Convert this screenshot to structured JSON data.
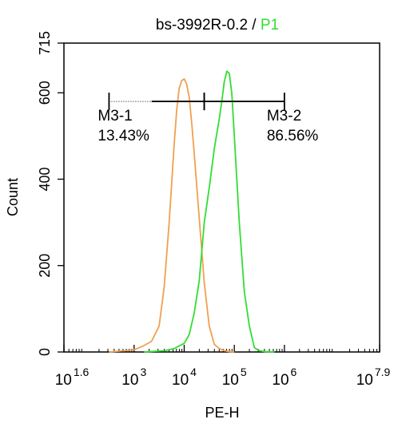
{
  "chart_data": {
    "type": "line",
    "title": {
      "prefix": "bs-3992R-0.2",
      "separator": " / ",
      "highlight": "P1",
      "highlight_color": "#33dd33"
    },
    "xlabel": "PE-H",
    "ylabel": "Count",
    "x_scale": "log10",
    "xlim_exponent": [
      1.6,
      7.9
    ],
    "ylim": [
      0,
      715
    ],
    "x_ticks": [
      {
        "base": "10",
        "exp": "1.6",
        "value": 1.6
      },
      {
        "base": "10",
        "exp": "3",
        "value": 3
      },
      {
        "base": "10",
        "exp": "4",
        "value": 4
      },
      {
        "base": "10",
        "exp": "5",
        "value": 5
      },
      {
        "base": "10",
        "exp": "6",
        "value": 6
      },
      {
        "base": "10",
        "exp": "7.9",
        "value": 7.9
      }
    ],
    "y_ticks": [
      {
        "label": "0",
        "value": 0
      },
      {
        "label": "200",
        "value": 200
      },
      {
        "label": "400",
        "value": 400
      },
      {
        "label": "600",
        "value": 600
      },
      {
        "label": "715",
        "value": 715
      }
    ],
    "series": [
      {
        "color": "#f0a050",
        "log_x": [
          2.5,
          2.8,
          3.0,
          3.2,
          3.35,
          3.5,
          3.6,
          3.7,
          3.8,
          3.85,
          3.9,
          3.95,
          4.0,
          4.05,
          4.1,
          4.15,
          4.2,
          4.3,
          4.4,
          4.5,
          4.6,
          4.7,
          4.8,
          4.9,
          5.0
        ],
        "counts": [
          0,
          3,
          5,
          15,
          25,
          60,
          150,
          300,
          480,
          560,
          610,
          628,
          632,
          620,
          590,
          530,
          460,
          310,
          160,
          60,
          18,
          8,
          3,
          1,
          0
        ]
      },
      {
        "color": "#33dd33",
        "log_x": [
          3.2,
          3.6,
          3.8,
          4.0,
          4.05,
          4.1,
          4.2,
          4.3,
          4.4,
          4.5,
          4.6,
          4.7,
          4.75,
          4.8,
          4.85,
          4.9,
          4.95,
          5.0,
          5.05,
          5.1,
          5.2,
          5.3,
          5.4,
          5.5,
          5.6,
          5.8
        ],
        "counts": [
          0,
          3,
          8,
          20,
          30,
          40,
          90,
          165,
          300,
          380,
          470,
          540,
          580,
          625,
          650,
          645,
          600,
          500,
          400,
          300,
          140,
          60,
          10,
          3,
          1,
          0
        ]
      }
    ],
    "gates": [
      {
        "name": "M3-1",
        "percent": "13.43%",
        "log_range": [
          2.5,
          4.4
        ],
        "count_level": 580,
        "label_side": "left"
      },
      {
        "name": "M3-2",
        "percent": "86.56%",
        "log_range": [
          4.4,
          6.0
        ],
        "count_level": 580,
        "label_side": "right"
      }
    ]
  }
}
